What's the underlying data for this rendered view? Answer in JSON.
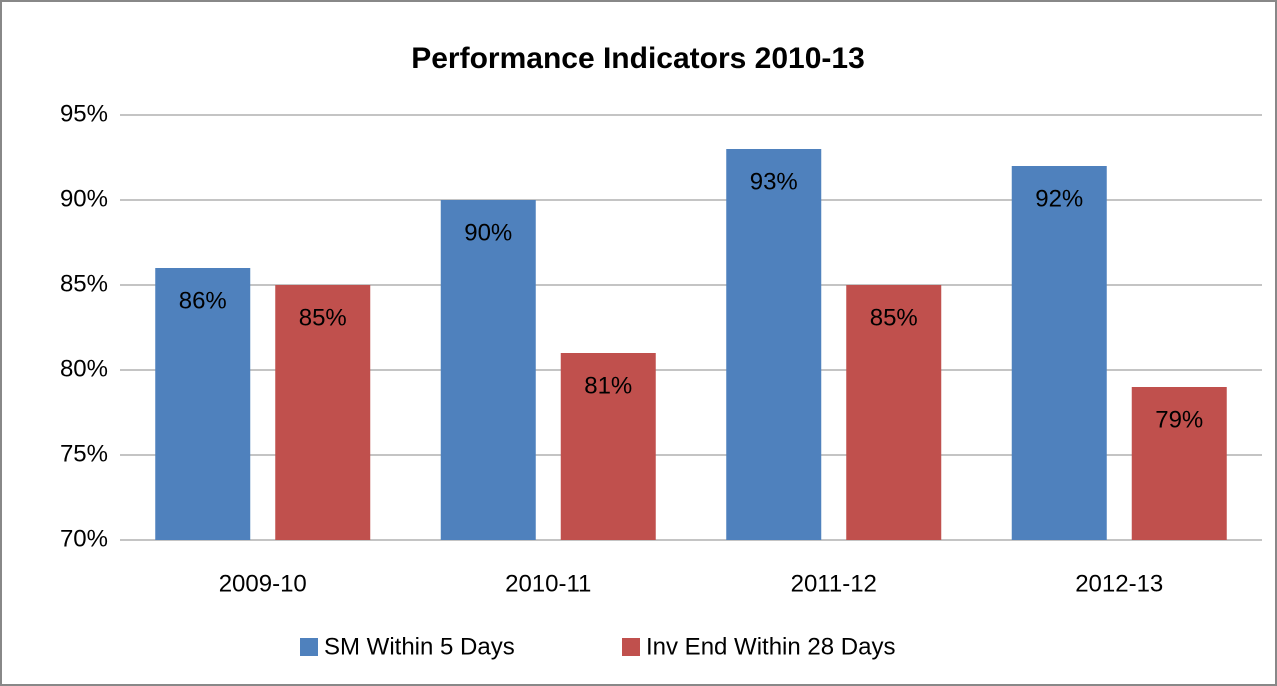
{
  "chart_data": {
    "type": "bar",
    "title": "Performance Indicators 2010-13",
    "categories": [
      "2009-10",
      "2010-11",
      "2011-12",
      "2012-13"
    ],
    "series": [
      {
        "name": "SM Within 5 Days",
        "color": "#4f81bd",
        "values": [
          86,
          90,
          93,
          92
        ],
        "value_labels": [
          "86%",
          "90%",
          "93%",
          "92%"
        ]
      },
      {
        "name": "Inv End Within 28 Days",
        "color": "#c0504d",
        "values": [
          85,
          81,
          85,
          79
        ],
        "value_labels": [
          "85%",
          "81%",
          "85%",
          "79%"
        ]
      }
    ],
    "ylim": [
      70,
      95
    ],
    "yticks": [
      {
        "value": 70,
        "label": "70%"
      },
      {
        "value": 75,
        "label": "75%"
      },
      {
        "value": 80,
        "label": "80%"
      },
      {
        "value": 85,
        "label": "85%"
      },
      {
        "value": 90,
        "label": "90%"
      },
      {
        "value": 95,
        "label": "95%"
      }
    ],
    "grid": true,
    "legend": "bottom"
  }
}
